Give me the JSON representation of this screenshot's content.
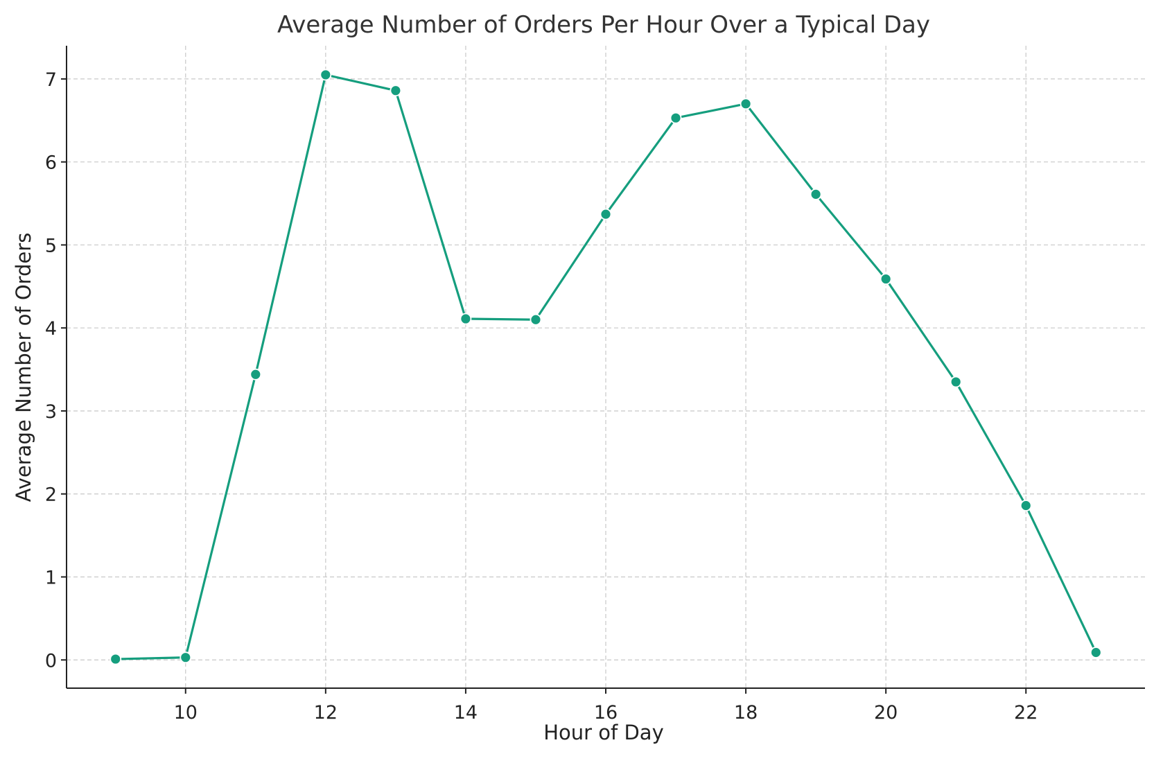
{
  "chart_data": {
    "type": "line",
    "title": "Average Number of Orders Per Hour Over a Typical Day",
    "xlabel": "Hour of Day",
    "ylabel": "Average Number of Orders",
    "xlim": [
      8.3,
      23.7
    ],
    "ylim": [
      -0.34,
      7.4
    ],
    "xticks": [
      10,
      12,
      14,
      16,
      18,
      20,
      22
    ],
    "yticks": [
      0,
      1,
      2,
      3,
      4,
      5,
      6,
      7
    ],
    "grid": true,
    "legend": "none",
    "series": [
      {
        "color": "#159e7e",
        "marker": "circle",
        "x": [
          9,
          10,
          11,
          12,
          13,
          14,
          15,
          16,
          17,
          18,
          19,
          20,
          21,
          22,
          23
        ],
        "y": [
          0.01,
          0.03,
          3.44,
          7.05,
          6.86,
          4.11,
          4.1,
          5.37,
          6.53,
          6.7,
          5.61,
          4.59,
          3.35,
          1.86,
          0.09
        ]
      }
    ]
  }
}
